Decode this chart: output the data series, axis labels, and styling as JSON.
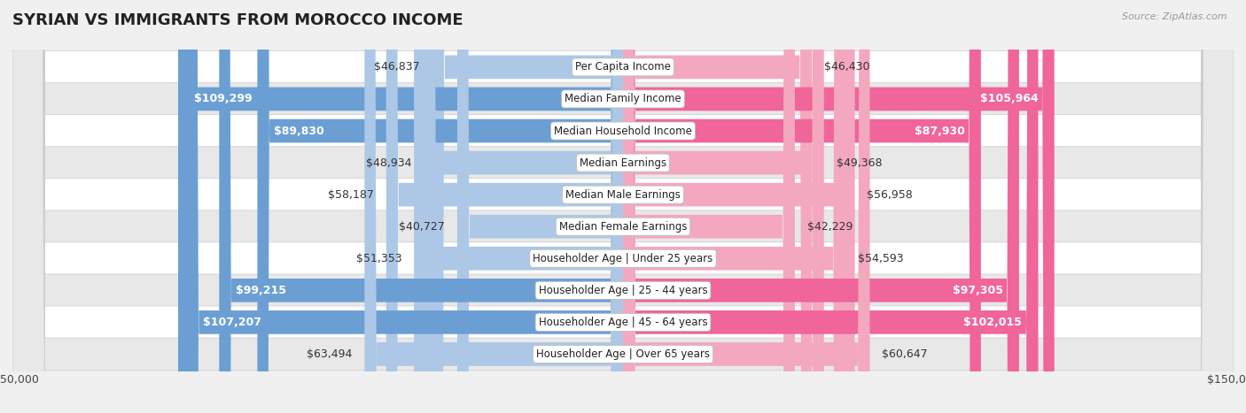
{
  "title": "Syrian vs Immigrants from Morocco Income",
  "source": "Source: ZipAtlas.com",
  "categories": [
    "Per Capita Income",
    "Median Family Income",
    "Median Household Income",
    "Median Earnings",
    "Median Male Earnings",
    "Median Female Earnings",
    "Householder Age | Under 25 years",
    "Householder Age | 25 - 44 years",
    "Householder Age | 45 - 64 years",
    "Householder Age | Over 65 years"
  ],
  "syrian_values": [
    46837,
    109299,
    89830,
    48934,
    58187,
    40727,
    51353,
    99215,
    107207,
    63494
  ],
  "morocco_values": [
    46430,
    105964,
    87930,
    49368,
    56958,
    42229,
    54593,
    97305,
    102015,
    60647
  ],
  "syrian_color_high": "#6b9fd4",
  "syrian_color_low": "#adc8e6",
  "morocco_color_high": "#f0659a",
  "morocco_color_low": "#f4a8c0",
  "white_label_threshold": 65000,
  "xlim": 150000,
  "background_color": "#f0f0f0",
  "row_bg_white": "#ffffff",
  "row_bg_gray": "#e8e8e8",
  "title_fontsize": 13,
  "value_fontsize": 9,
  "cat_fontsize": 8.5,
  "legend_fontsize": 9,
  "source_fontsize": 8
}
